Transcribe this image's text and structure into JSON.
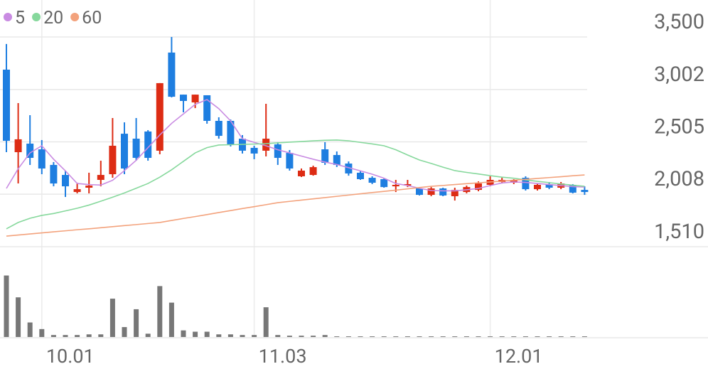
{
  "chart_data": [
    {
      "type": "candlestick",
      "open": [
        3190,
        2407,
        2488,
        2434,
        2286,
        2191,
        2029,
        2070,
        2144,
        2198,
        2582,
        2535,
        2603,
        2421,
        3352,
        2953,
        2879,
        2947,
        2704,
        2704,
        2535,
        2448,
        2421,
        2481,
        2400,
        2178,
        2191,
        2434,
        2380,
        2299,
        2212,
        2164,
        2151,
        2083,
        2090,
        2063,
        2002,
        2063,
        1989,
        2029,
        2049,
        2097,
        2124,
        2117,
        2164,
        2056,
        2104,
        2070,
        2097,
        2049
      ],
      "high": [
        3433,
        2873,
        2758,
        2522,
        2313,
        2232,
        2117,
        2212,
        2326,
        2731,
        2690,
        2731,
        2616,
        3062,
        3500,
        2953,
        2953,
        2947,
        2738,
        2717,
        2569,
        2468,
        2866,
        2502,
        2427,
        2252,
        2279,
        2502,
        2414,
        2319,
        2225,
        2178,
        2157,
        2144,
        2144,
        2076,
        2076,
        2070,
        2070,
        2090,
        2130,
        2178,
        2164,
        2151,
        2178,
        2110,
        2124,
        2124,
        2104,
        2083
      ],
      "low": [
        2407,
        2110,
        2286,
        2198,
        2083,
        1982,
        2016,
        2016,
        2083,
        2164,
        2198,
        2326,
        2326,
        2387,
        2927,
        2785,
        2825,
        2677,
        2535,
        2461,
        2394,
        2340,
        2367,
        2286,
        2232,
        2171,
        2184,
        2286,
        2266,
        2184,
        2144,
        2104,
        2070,
        2029,
        2076,
        1996,
        1989,
        1989,
        1948,
        2016,
        2036,
        2083,
        2110,
        2104,
        2043,
        2043,
        2056,
        2056,
        2016,
        2002
      ],
      "close": [
        2515,
        2529,
        2353,
        2252,
        2110,
        2083,
        2056,
        2090,
        2191,
        2468,
        2252,
        2353,
        2353,
        3062,
        2933,
        2893,
        2953,
        2704,
        2562,
        2481,
        2421,
        2394,
        2535,
        2353,
        2252,
        2232,
        2265,
        2306,
        2286,
        2205,
        2151,
        2117,
        2076,
        2097,
        2104,
        2002,
        2063,
        1996,
        2049,
        2076,
        2110,
        2144,
        2144,
        2144,
        2056,
        2097,
        2070,
        2110,
        2023,
        2029
      ],
      "up_color": "#dd2c14",
      "down_color": "#1e7ee0",
      "series": [
        {
          "name": "5",
          "color": "#c98be2",
          "values": [
            2063,
            2250,
            2400,
            2468,
            2340,
            2230,
            2110,
            2100,
            2095,
            2140,
            2232,
            2330,
            2450,
            2570,
            2680,
            2770,
            2860,
            2906,
            2820,
            2704,
            2535,
            2500,
            2468,
            2430,
            2400,
            2370,
            2340,
            2313,
            2290,
            2260,
            2230,
            2198,
            2160,
            2110,
            2090,
            2065,
            2043,
            2040,
            2040,
            2050,
            2063,
            2090,
            2115,
            2124,
            2120,
            2110,
            2100,
            2090,
            2080,
            2076
          ]
        },
        {
          "name": "20",
          "color": "#86d89c",
          "values": [
            1680,
            1740,
            1780,
            1807,
            1825,
            1850,
            1875,
            1905,
            1942,
            1980,
            2020,
            2065,
            2110,
            2170,
            2240,
            2320,
            2400,
            2450,
            2475,
            2478,
            2481,
            2484,
            2488,
            2495,
            2502,
            2508,
            2515,
            2520,
            2522,
            2515,
            2500,
            2485,
            2468,
            2430,
            2380,
            2333,
            2300,
            2265,
            2232,
            2215,
            2200,
            2184,
            2170,
            2160,
            2144,
            2130,
            2118,
            2105,
            2094,
            2083
          ]
        },
        {
          "name": "60",
          "color": "#f3a27c",
          "values": [
            1611,
            1621,
            1631,
            1641,
            1651,
            1661,
            1671,
            1680,
            1690,
            1700,
            1710,
            1720,
            1730,
            1740,
            1759,
            1778,
            1796,
            1815,
            1834,
            1853,
            1872,
            1890,
            1909,
            1928,
            1940,
            1952,
            1964,
            1976,
            1988,
            2000,
            2012,
            2024,
            2035,
            2047,
            2059,
            2071,
            2083,
            2091,
            2100,
            2108,
            2116,
            2124,
            2133,
            2141,
            2149,
            2158,
            2166,
            2174,
            2183,
            2191
          ]
        }
      ],
      "ylim": [
        1510,
        3500
      ],
      "yticks": [
        {
          "value": 3500,
          "label": "3,500"
        },
        {
          "value": 3002,
          "label": "3,002"
        },
        {
          "value": 2505,
          "label": "2,505"
        },
        {
          "value": 2008,
          "label": "2,008"
        },
        {
          "value": 1510,
          "label": "1,510"
        }
      ],
      "grid": true
    },
    {
      "type": "bar",
      "categories": [
        null,
        null,
        null,
        "10.01",
        null,
        null,
        null,
        null,
        null,
        null,
        null,
        null,
        null,
        null,
        null,
        null,
        null,
        null,
        null,
        null,
        null,
        "11.03",
        null,
        null,
        null,
        null,
        null,
        null,
        null,
        null,
        null,
        null,
        null,
        null,
        null,
        null,
        null,
        null,
        null,
        null,
        null,
        "12.01",
        null,
        null,
        null,
        null,
        null,
        null,
        null,
        null
      ],
      "values": [
        93,
        60,
        22,
        12,
        3,
        3,
        3,
        4,
        4,
        58,
        15,
        42,
        5,
        77,
        52,
        10,
        8,
        8,
        4,
        4,
        3,
        3,
        45,
        3,
        2,
        2,
        2,
        3,
        1,
        1,
        1,
        1,
        1,
        1,
        1,
        1,
        1,
        1,
        1,
        1,
        1,
        1,
        1,
        1,
        1,
        1,
        1,
        1,
        1,
        1
      ],
      "color": "#777777",
      "ylim": [
        0,
        100
      ]
    }
  ]
}
